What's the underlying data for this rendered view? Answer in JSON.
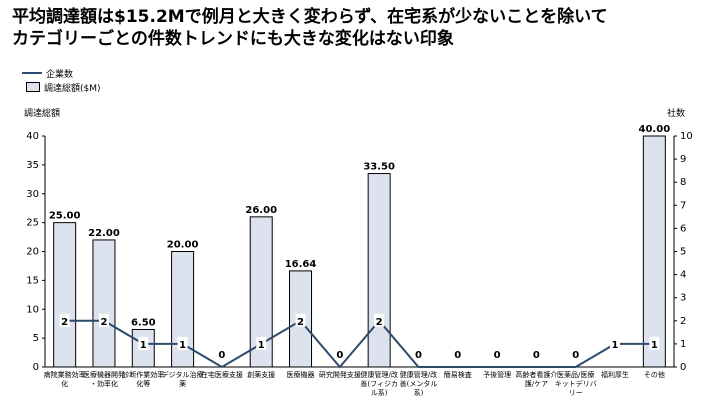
{
  "title": {
    "line1": "平均調達額は$15.2Mで例月と大きく変わらず、在宅系が少ないことを除いて",
    "line2": "カテゴリーごとの件数トレンドにも大きな変化はない印象"
  },
  "legend": {
    "companies": "企業数",
    "funding": "調達総額($M)"
  },
  "colors": {
    "bar_fill": "#dde3ee",
    "bar_stroke": "#000000",
    "line": "#2d4a6b"
  },
  "chart_data": {
    "type": "bar",
    "ylabel": "調達総額",
    "y2label": "社数",
    "ylim": [
      0,
      40
    ],
    "y2lim": [
      0,
      10
    ],
    "yticks": [
      0,
      5,
      10,
      15,
      20,
      25,
      30,
      35,
      40
    ],
    "y2ticks": [
      0,
      1,
      2,
      3,
      4,
      5,
      6,
      7,
      8,
      9,
      10
    ],
    "categories": [
      "病院業務効率化",
      "医療機器開発・効率化",
      "診断作業効率化等",
      "デジタル治療薬",
      "在宅医療支援",
      "創薬支援",
      "医療機器",
      "研究開発支援",
      "健康管理/改善(フィジカル系)",
      "健康管理/改善(メンタル系)",
      "簡易検査",
      "予後管理",
      "高齢者看護介護/ケア",
      "医薬品/医療キットデリバリー",
      "福利厚生",
      "その他"
    ],
    "series": [
      {
        "name": "調達総額($M)",
        "type": "bar",
        "values": [
          25.0,
          22.0,
          6.5,
          20.0,
          0,
          26.0,
          16.64,
          0,
          33.5,
          0,
          0,
          0,
          0,
          0,
          0,
          40.0
        ],
        "labels": [
          "25.00",
          "22.00",
          "6.50",
          "20.00",
          "",
          "26.00",
          "16.64",
          "",
          "33.50",
          "",
          "",
          "",
          "",
          "",
          "",
          "40.00"
        ]
      },
      {
        "name": "企業数",
        "type": "line",
        "values": [
          2,
          2,
          1,
          1,
          0,
          1,
          2,
          0,
          2,
          0,
          0,
          0,
          0,
          0,
          1,
          1
        ]
      }
    ]
  }
}
